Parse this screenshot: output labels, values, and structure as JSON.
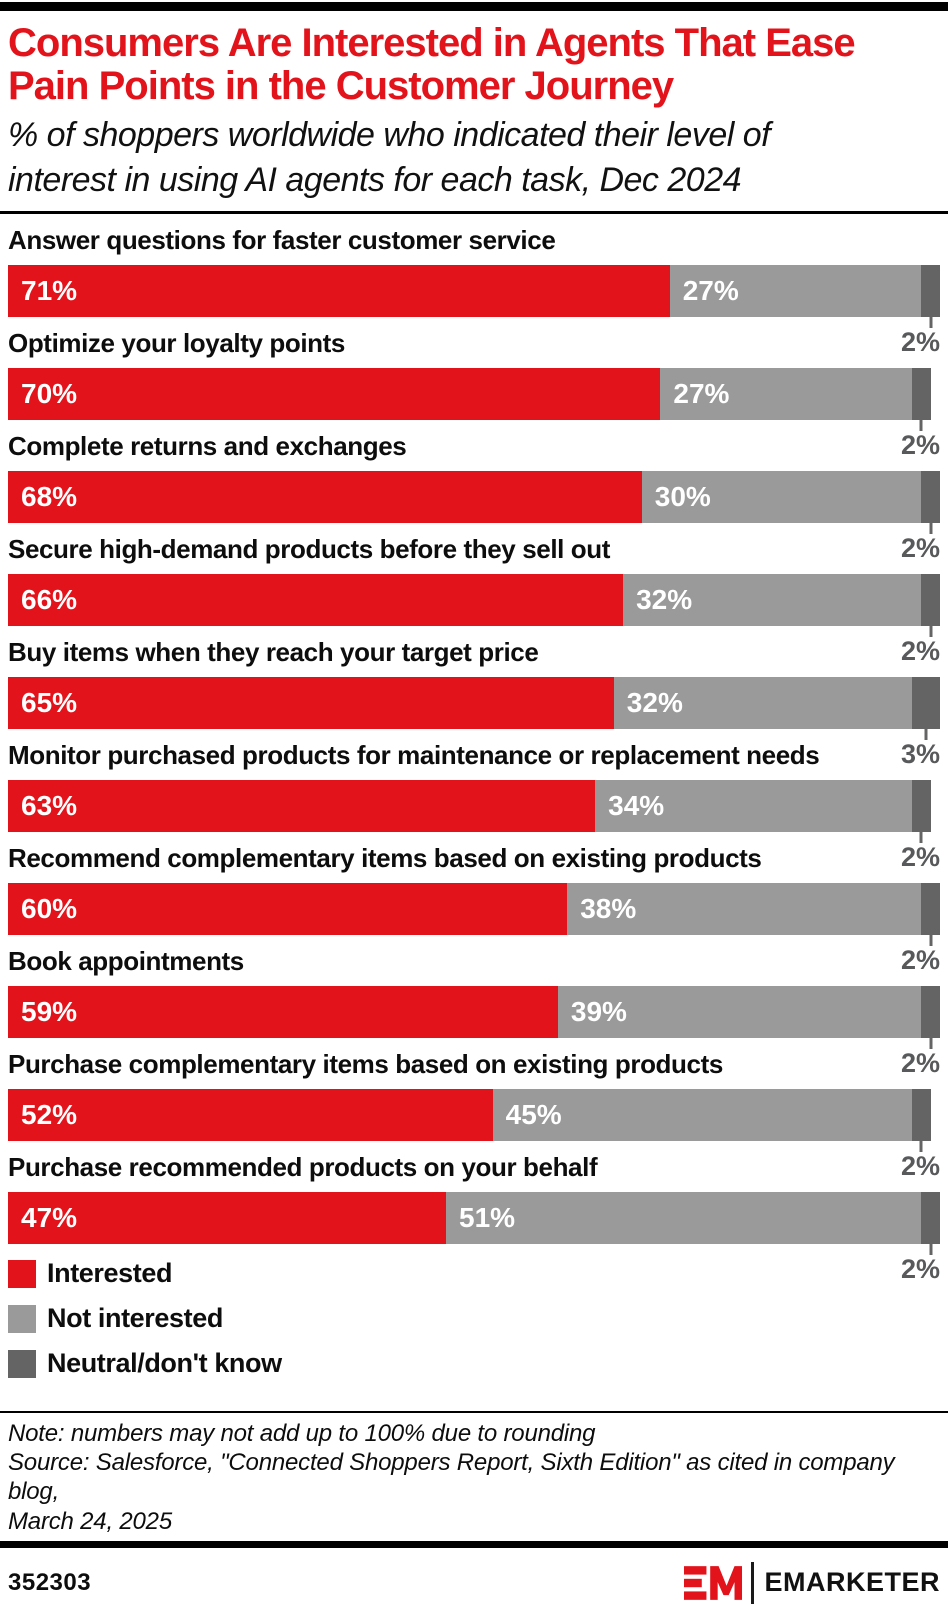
{
  "header": {
    "title": "Consumers Are Interested in Agents That Ease\nPain Points in the Customer Journey",
    "subtitle": "% of shoppers worldwide who indicated their level of\ninterest in using AI agents for each task, Dec 2024"
  },
  "chart_data": {
    "type": "bar",
    "orientation": "horizontal",
    "stacked": true,
    "unit": "%",
    "xlim": [
      0,
      100
    ],
    "grid": false,
    "legend_position": "bottom-left",
    "title": "Consumers Are Interested in Agents That Ease Pain Points in the Customer Journey",
    "subtitle": "% of shoppers worldwide who indicated their level of interest in using AI agents for each task, Dec 2024",
    "categories": [
      "Answer questions for faster customer service",
      "Optimize your loyalty points",
      "Complete returns and exchanges",
      "Secure high-demand products before they sell out",
      "Buy items when they reach your target price",
      "Monitor purchased products for maintenance or replacement needs",
      "Recommend complementary items based on existing products",
      "Book appointments",
      "Purchase complementary items based on existing products",
      "Purchase recommended products on your behalf"
    ],
    "series": [
      {
        "name": "Interested",
        "color": "#e3131b",
        "values": [
          71,
          70,
          68,
          66,
          65,
          63,
          60,
          59,
          52,
          47
        ]
      },
      {
        "name": "Not interested",
        "color": "#9a9a9a",
        "values": [
          27,
          27,
          30,
          32,
          32,
          34,
          38,
          39,
          45,
          51
        ]
      },
      {
        "name": "Neutral/don't know",
        "color": "#646464",
        "values": [
          2,
          2,
          2,
          2,
          3,
          2,
          2,
          2,
          2,
          2
        ]
      }
    ]
  },
  "colors": {
    "interested": "#e3131b",
    "not_interested": "#9a9a9a",
    "neutral": "#646464",
    "neutral_value_text": "#58595b",
    "title_red": "#e3131b"
  },
  "footer": {
    "note": "Note: numbers may not add up to 100% due to rounding",
    "source": "Source: Salesforce, \"Connected Shoppers Report, Sixth Edition\" as cited in company blog,\nMarch 24, 2025",
    "chart_id": "352303",
    "brand": "EMARKETER"
  }
}
